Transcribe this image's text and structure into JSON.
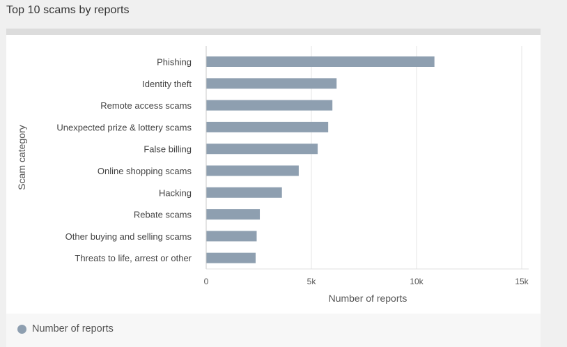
{
  "page": {
    "title": "Top 10 scams by reports"
  },
  "legend": {
    "label": "Number of reports"
  },
  "chart_data": {
    "type": "bar",
    "orientation": "horizontal",
    "title": "Top 10 scams by reports",
    "xlabel": "Number of reports",
    "ylabel": "Scam category",
    "categories": [
      "Phishing",
      "Identity theft",
      "Remote access scams",
      "Unexpected prize & lottery scams",
      "False billing",
      "Online shopping scams",
      "Hacking",
      "Rebate scams",
      "Other buying and selling scams",
      "Threats to life, arrest or other"
    ],
    "series": [
      {
        "name": "Number of reports",
        "values": [
          10850,
          6200,
          6000,
          5800,
          5300,
          4400,
          3600,
          2550,
          2400,
          2350
        ],
        "color": "#8e9fb0"
      }
    ],
    "xlim": [
      0,
      15000
    ],
    "xticks": [
      0,
      5000,
      10000,
      15000
    ],
    "xtick_labels": [
      "0",
      "5k",
      "10k",
      "15k"
    ],
    "grid": true,
    "legend_position": "bottom-left"
  }
}
